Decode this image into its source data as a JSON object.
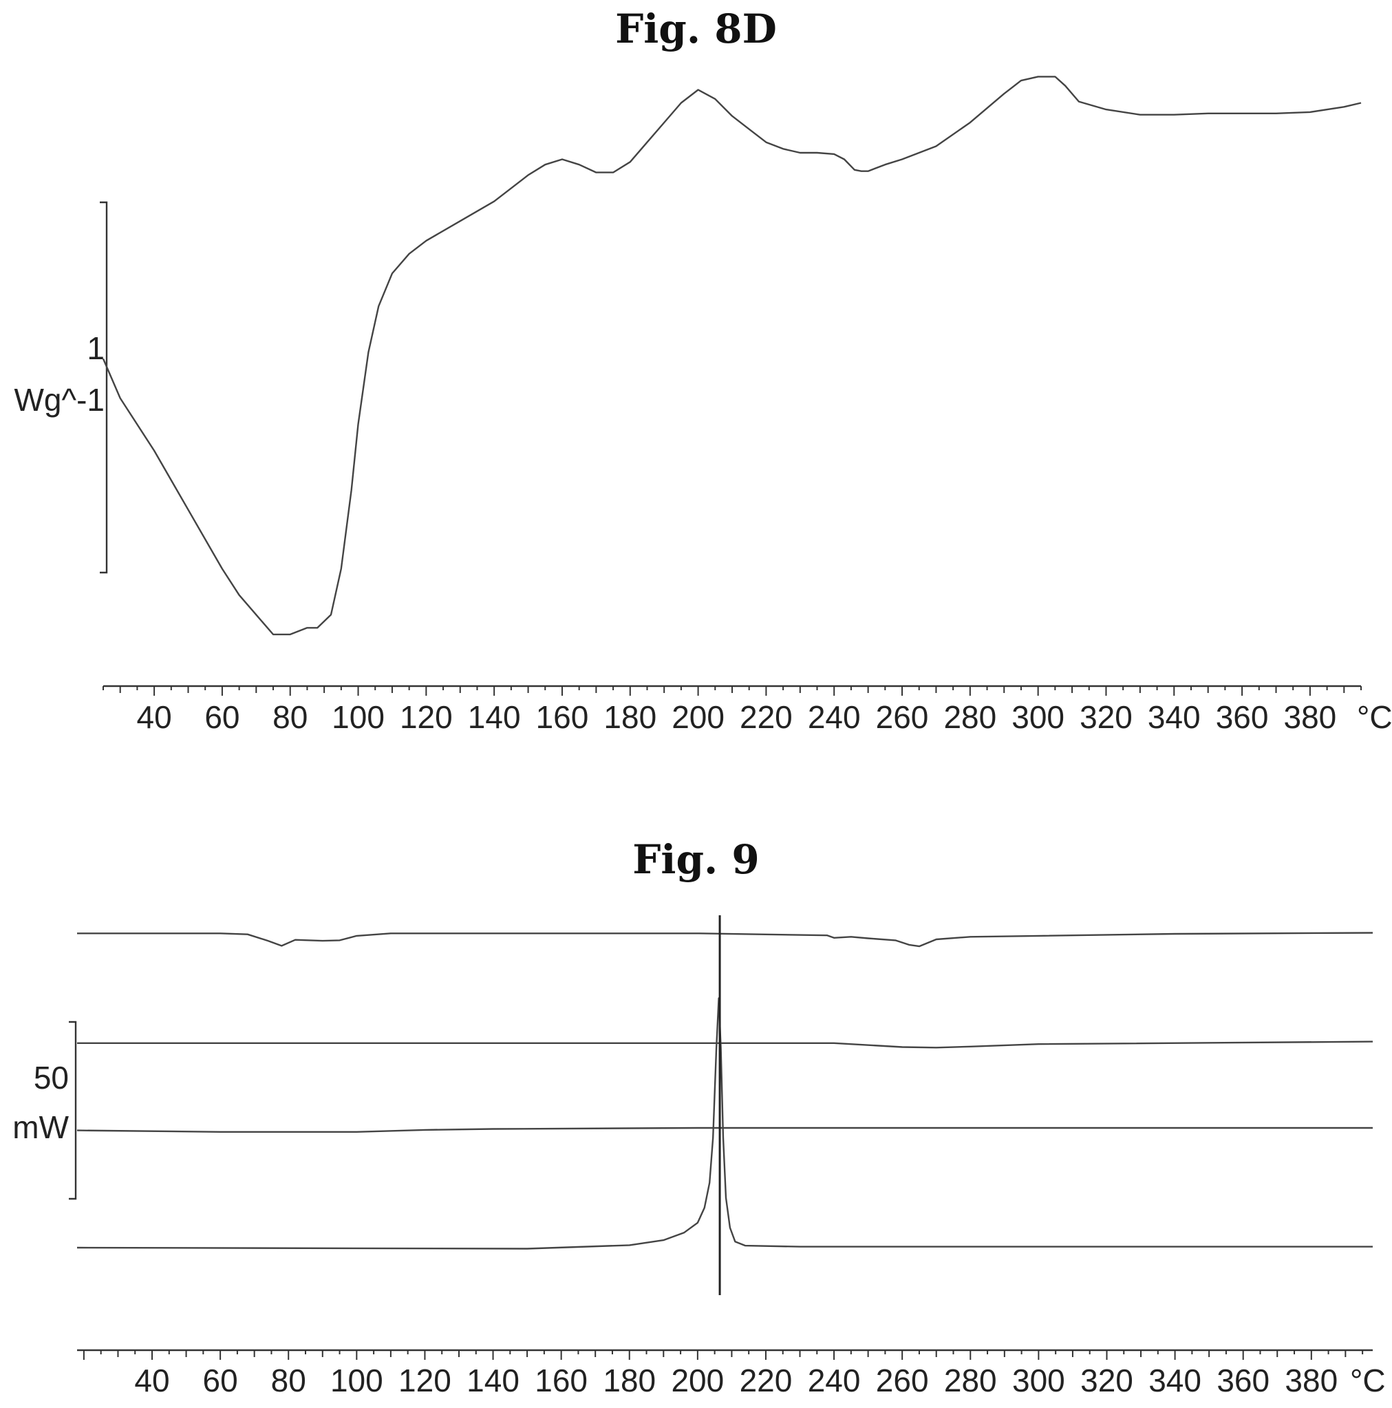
{
  "figures": [
    {
      "title": "Fig. 8D"
    },
    {
      "title": "Fig. 9"
    }
  ],
  "chart_data": [
    {
      "type": "line",
      "title": "Fig. 8D",
      "xlabel": "",
      "x_unit_label": "°C",
      "scale_bar_value": "1",
      "scale_bar_unit": "Wg^-1",
      "xlim": [
        25,
        395
      ],
      "ylim": [
        -2.4,
        1.9
      ],
      "xticks": [
        40,
        60,
        80,
        100,
        120,
        140,
        160,
        180,
        200,
        220,
        240,
        260,
        280,
        300,
        320,
        340,
        360,
        380
      ],
      "series": [
        {
          "x": [
            25,
            30,
            40,
            50,
            60,
            65,
            70,
            75,
            80,
            85,
            88,
            92,
            95,
            98,
            100,
            103,
            106,
            110,
            115,
            120,
            130,
            140,
            150,
            155,
            160,
            165,
            170,
            175,
            180,
            185,
            190,
            195,
            200,
            205,
            210,
            215,
            220,
            225,
            230,
            235,
            240,
            243,
            246,
            248,
            250,
            255,
            260,
            270,
            280,
            290,
            295,
            300,
            305,
            308,
            312,
            320,
            330,
            340,
            350,
            360,
            370,
            380,
            390,
            395
          ],
          "y": [
            -0.1,
            -0.4,
            -0.8,
            -1.25,
            -1.7,
            -1.9,
            -2.05,
            -2.2,
            -2.2,
            -2.15,
            -2.15,
            -2.05,
            -1.7,
            -1.1,
            -0.6,
            -0.05,
            0.3,
            0.55,
            0.7,
            0.8,
            0.95,
            1.1,
            1.3,
            1.38,
            1.42,
            1.38,
            1.32,
            1.32,
            1.4,
            1.55,
            1.7,
            1.85,
            1.95,
            1.88,
            1.75,
            1.65,
            1.55,
            1.5,
            1.47,
            1.47,
            1.46,
            1.42,
            1.34,
            1.33,
            1.33,
            1.38,
            1.42,
            1.52,
            1.7,
            1.92,
            2.02,
            2.05,
            2.05,
            1.98,
            1.86,
            1.8,
            1.76,
            1.76,
            1.77,
            1.77,
            1.77,
            1.78,
            1.82,
            1.85
          ]
        }
      ]
    },
    {
      "type": "line",
      "title": "Fig. 9",
      "xlabel": "",
      "x_unit_label": "°C",
      "scale_bar_value": "50",
      "scale_bar_unit": "mW",
      "xlim": [
        18,
        398
      ],
      "ylim": [
        -32,
        48
      ],
      "xticks": [
        40,
        60,
        80,
        100,
        120,
        140,
        160,
        180,
        200,
        220,
        240,
        260,
        280,
        300,
        320,
        340,
        360,
        380
      ],
      "vertical_marker_x": 206.5,
      "series": [
        {
          "x": [
            18,
            60,
            68,
            74,
            78,
            82,
            90,
            95,
            100,
            110,
            200,
            238,
            240,
            245,
            250,
            258,
            262,
            265,
            270,
            280,
            300,
            340,
            398
          ],
          "y": [
            43,
            43,
            42.8,
            41.5,
            40.5,
            41.7,
            41.5,
            41.6,
            42.5,
            43,
            43,
            42.6,
            42.1,
            42.3,
            42,
            41.6,
            40.7,
            40.4,
            41.8,
            42.3,
            42.5,
            42.9,
            43.1
          ]
        },
        {
          "x": [
            18,
            100,
            200,
            240,
            260,
            270,
            280,
            300,
            398
          ],
          "y": [
            21,
            21,
            21,
            21,
            20.2,
            20.1,
            20.3,
            20.8,
            21.3
          ]
        },
        {
          "x": [
            18,
            60,
            100,
            120,
            140,
            200,
            300,
            398
          ],
          "y": [
            3.5,
            3.2,
            3.2,
            3.6,
            3.8,
            4,
            4,
            4
          ]
        },
        {
          "x": [
            18,
            150,
            180,
            190,
            196,
            200,
            202,
            203.5,
            204.5,
            205.5,
            206.2,
            206.8,
            207.5,
            208.3,
            209.5,
            211,
            214,
            230,
            398
          ],
          "y": [
            -20,
            -20.2,
            -19.5,
            -18.5,
            -17,
            -15,
            -12,
            -7,
            2,
            20,
            30,
            20,
            2,
            -10,
            -16,
            -18.8,
            -19.6,
            -19.8,
            -19.8
          ]
        }
      ]
    }
  ]
}
